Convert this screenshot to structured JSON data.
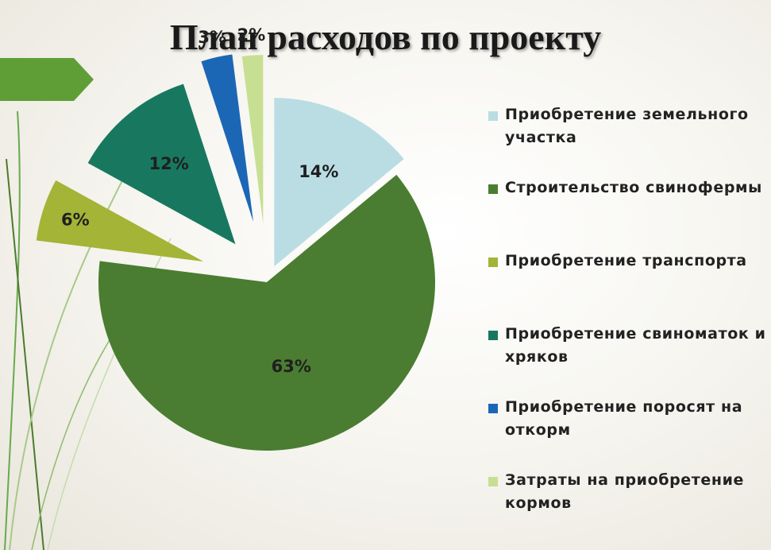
{
  "title": "План расходов по проекту",
  "colors": {
    "land": "#b9dde3",
    "farm": "#4a7d31",
    "transport": "#a3b437",
    "sows": "#17785f",
    "piglets": "#1c67b5",
    "feed": "#c7df92",
    "accent_arrow": "#5f9e37"
  },
  "chart_data": {
    "type": "pie",
    "title": "План расходов по проекту",
    "values": [
      14,
      63,
      6,
      12,
      3,
      2
    ],
    "labels": [
      "14%",
      "63%",
      "6%",
      "12%",
      "3%",
      "2%"
    ],
    "legend": [
      "Приобретение земельного участка",
      "Строительство свинофермы",
      "Приобретение транспорта",
      "Приобретение свиноматок и хряков",
      "Приобретение поросят на откорм",
      "Затраты на приобретение кормов"
    ],
    "legend_position": "right",
    "exploded": true
  }
}
